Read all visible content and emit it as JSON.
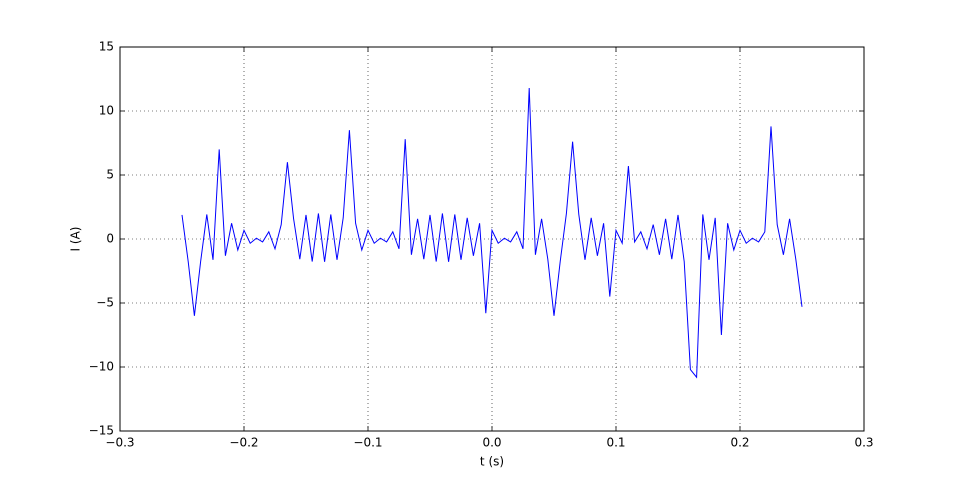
{
  "chart_data": {
    "type": "line",
    "xlabel": "t (s)",
    "ylabel": "I (A)",
    "xlim": [
      -0.3,
      0.3
    ],
    "xticks": [
      {
        "value": -0.3,
        "label": "−0.3"
      },
      {
        "value": -0.2,
        "label": "−0.2"
      },
      {
        "value": -0.1,
        "label": "−0.1"
      },
      {
        "value": 0,
        "label": "0.0"
      },
      {
        "value": 0.1,
        "label": "0.1"
      },
      {
        "value": 0.2,
        "label": "0.2"
      },
      {
        "value": 0.3,
        "label": "0.3"
      }
    ],
    "ylim": [
      -15,
      15
    ],
    "yticks": [
      {
        "value": -15,
        "label": "−15"
      },
      {
        "value": -10,
        "label": "−10"
      },
      {
        "value": -5,
        "label": "−5"
      },
      0,
      5,
      10,
      15
    ],
    "grid": true,
    "x": [
      -0.25,
      -0.245,
      -0.24,
      -0.235,
      -0.23,
      -0.225,
      -0.22,
      -0.215,
      -0.21,
      -0.205,
      -0.2,
      -0.195,
      -0.19,
      -0.185,
      -0.18,
      -0.175,
      -0.17,
      -0.165,
      -0.16,
      -0.155,
      -0.15,
      -0.145,
      -0.14,
      -0.135,
      -0.13,
      -0.125,
      -0.12,
      -0.115,
      -0.11,
      -0.105,
      -0.1,
      -0.095,
      -0.09,
      -0.085,
      -0.08,
      -0.075,
      -0.07,
      -0.065,
      -0.06,
      -0.055,
      -0.05,
      -0.045,
      -0.04,
      -0.035,
      -0.03,
      -0.025,
      -0.02,
      -0.015,
      -0.01,
      -0.005,
      0,
      0.005,
      0.01,
      0.015,
      0.02,
      0.025,
      0.03,
      0.035,
      0.04,
      0.045,
      0.05,
      0.055,
      0.06,
      0.065,
      0.07,
      0.075,
      0.08,
      0.085,
      0.09,
      0.095,
      0.1,
      0.105,
      0.11,
      0.115,
      0.12,
      0.125,
      0.13,
      0.135,
      0.14,
      0.145,
      0.15,
      0.155,
      0.16,
      0.165,
      0.17,
      0.175,
      0.18,
      0.185,
      0.19,
      0.195,
      0.2,
      0.205,
      0.21,
      0.215,
      0.22,
      0.225,
      0.23,
      0.235,
      0.24,
      0.245,
      0.25
    ],
    "series": [
      {
        "color": "#0000ff",
        "values": [
          1.88,
          -1.76,
          -6,
          -1.78,
          1.92,
          -1.63,
          7,
          -1.31,
          1.23,
          -0.86,
          0.68,
          -0.33,
          0.06,
          -0.23,
          0.56,
          -0.77,
          1.12,
          6,
          1.58,
          -1.58,
          1.88,
          -1.76,
          2.0,
          -1.78,
          1.92,
          -1.63,
          1.65,
          8.5,
          1.23,
          -0.86,
          0.68,
          -0.33,
          0.06,
          -0.23,
          0.56,
          -0.77,
          7.8,
          -1.23,
          1.58,
          -1.58,
          1.88,
          -1.76,
          2.0,
          -1.78,
          1.92,
          -1.63,
          1.65,
          -1.31,
          1.23,
          -5.8,
          0.68,
          -0.33,
          0.06,
          -0.23,
          0.56,
          -0.77,
          11.8,
          -1.23,
          1.58,
          -1.58,
          -6,
          -1.76,
          2.0,
          7.6,
          1.92,
          -1.63,
          1.65,
          -1.31,
          1.23,
          -4.5,
          0.68,
          -0.33,
          5.7,
          -0.23,
          0.56,
          -0.77,
          1.12,
          -1.23,
          1.58,
          -1.58,
          1.88,
          -1.76,
          -10.2,
          -10.8,
          1.92,
          -1.63,
          1.65,
          -7.5,
          1.23,
          -0.86,
          0.68,
          -0.33,
          0.06,
          -0.23,
          0.56,
          8.8,
          1.12,
          -1.23,
          1.58,
          -1.58,
          -5.3
        ]
      }
    ]
  }
}
